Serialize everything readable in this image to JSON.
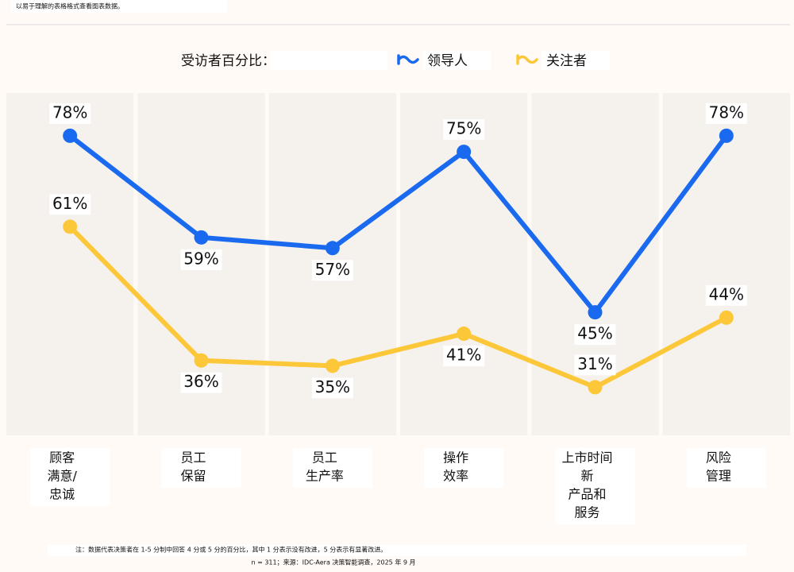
{
  "header": {
    "link_text": "以易于理解的表格格式查看图表数据。"
  },
  "chart_data": {
    "type": "line",
    "legend_title": "受访者百分比：",
    "categories": [
      [
        "顾客",
        "满意/",
        "忠诚"
      ],
      [
        "员工",
        "保留"
      ],
      [
        "员工",
        "生产率"
      ],
      [
        "操作",
        "效率"
      ],
      [
        "上市时间",
        "新",
        "产品和",
        "服务"
      ],
      [
        "风险",
        "管理"
      ]
    ],
    "series": [
      {
        "name": "领导人",
        "color": "#1a6af0",
        "values": [
          78,
          59,
          57,
          75,
          45,
          78
        ],
        "value_labels": [
          "78%",
          "59%",
          "57%",
          "75%",
          "45%",
          "78%"
        ]
      },
      {
        "name": "关注者",
        "color": "#fcc83a",
        "values": [
          61,
          36,
          35,
          41,
          31,
          44
        ],
        "value_labels": [
          "61%",
          "36%",
          "35%",
          "41%",
          "31%",
          "44%"
        ]
      }
    ],
    "ylim": [
      22,
      86
    ],
    "grid": false
  },
  "footer": {
    "note": "注：数据代表决策者在 1-5 分制中回答 4 分或 5 分的百分比，其中 1 分表示没有改进，5 分表示有显著改进。",
    "source": "n = 311；来源：IDC-Aera 决策智能调查，2025 年 9 月"
  }
}
